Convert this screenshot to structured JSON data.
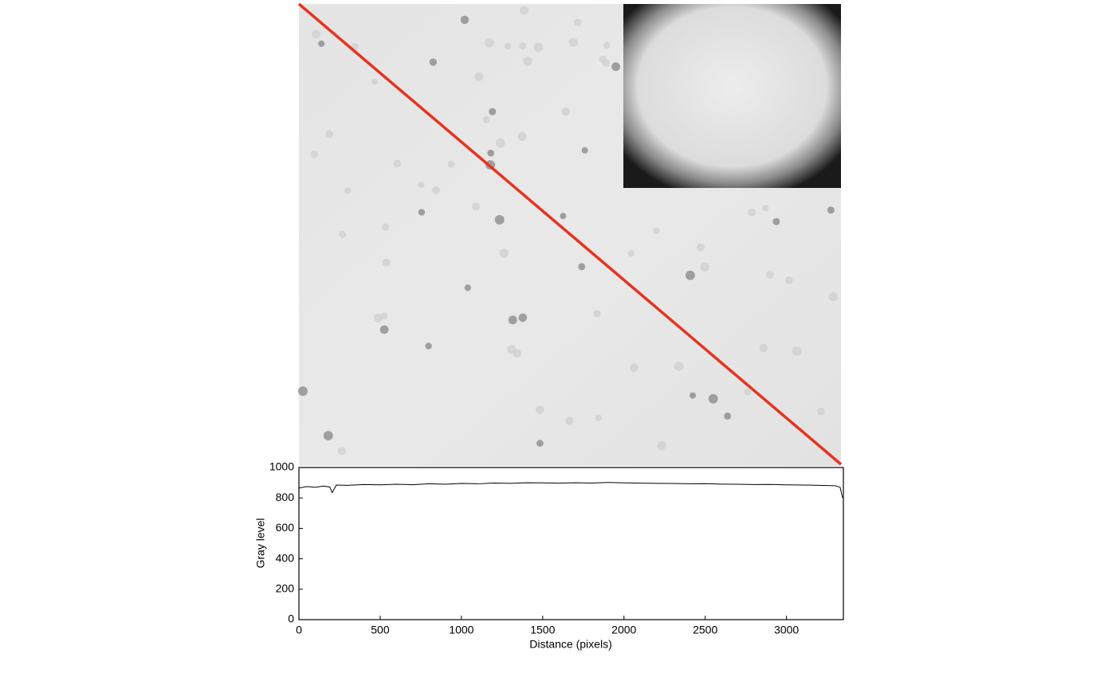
{
  "chart_data": {
    "type": "line",
    "x_label": "Distance (pixels)",
    "y_label": "Gray level",
    "x": [
      0,
      50,
      100,
      150,
      190,
      205,
      230,
      300,
      400,
      500,
      600,
      700,
      800,
      900,
      1000,
      1100,
      1200,
      1300,
      1400,
      1500,
      1600,
      1700,
      1800,
      1900,
      2000,
      2100,
      2200,
      2300,
      2400,
      2500,
      2600,
      2700,
      2800,
      2900,
      3000,
      3100,
      3200,
      3300,
      3330,
      3345
    ],
    "values": [
      865,
      875,
      870,
      878,
      872,
      835,
      885,
      883,
      888,
      886,
      890,
      887,
      893,
      890,
      895,
      893,
      898,
      896,
      900,
      899,
      897,
      900,
      898,
      902,
      899,
      897,
      896,
      895,
      893,
      894,
      891,
      890,
      888,
      889,
      886,
      885,
      883,
      880,
      870,
      800
    ],
    "color": "#000000",
    "xlim": [
      0,
      3350
    ],
    "ylim": [
      0,
      1000
    ],
    "xticks": [
      0,
      500,
      1000,
      1500,
      2000,
      2500,
      3000
    ],
    "yticks": [
      0,
      200,
      400,
      600,
      800,
      1000
    ]
  }
}
